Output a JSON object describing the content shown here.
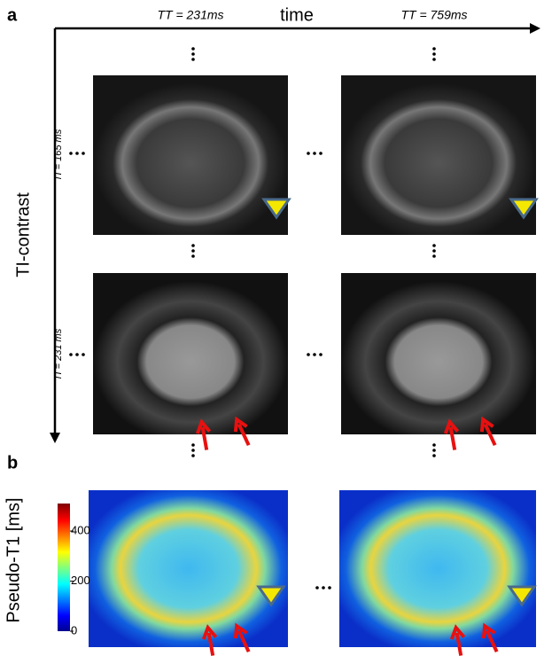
{
  "panels": {
    "a": "a",
    "b": "b"
  },
  "axes": {
    "horizontal": "time",
    "vertical": "TI-contrast"
  },
  "columns": [
    "TT = 231ms",
    "TT = 759ms"
  ],
  "rows": [
    "TI = 165 ms",
    "TI = 231 ms"
  ],
  "colorbar": {
    "label": "Pseudo-T1 [ms]",
    "lim": [
      0,
      510
    ],
    "ticks": [
      0,
      200,
      400
    ]
  }
}
